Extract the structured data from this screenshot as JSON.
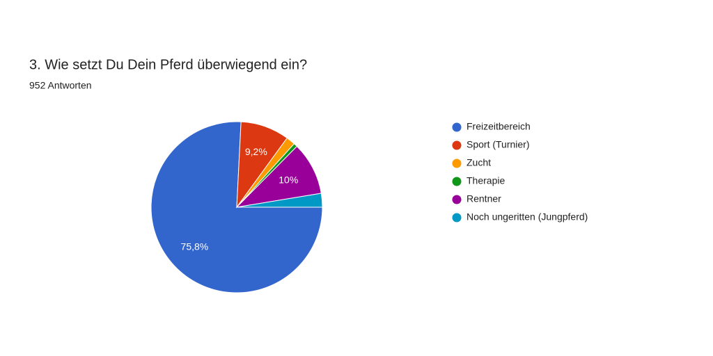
{
  "chart_data": {
    "type": "pie",
    "title": "3. Wie setzt Du Dein Pferd überwiegend ein?",
    "subtitle": "952 Antworten",
    "categories": [
      "Freizeitbereich",
      "Sport (Turnier)",
      "Zucht",
      "Therapie",
      "Rentner",
      "Noch ungeritten (Jungpferd)"
    ],
    "values": [
      75.8,
      9.2,
      1.7,
      0.7,
      10,
      2.6
    ],
    "value_labels": [
      "75,8%",
      "9,2%",
      null,
      null,
      "10%",
      null
    ],
    "colors": [
      "#3366cc",
      "#dc3912",
      "#ff9900",
      "#109618",
      "#990099",
      "#0099c6"
    ],
    "legend": "right"
  }
}
